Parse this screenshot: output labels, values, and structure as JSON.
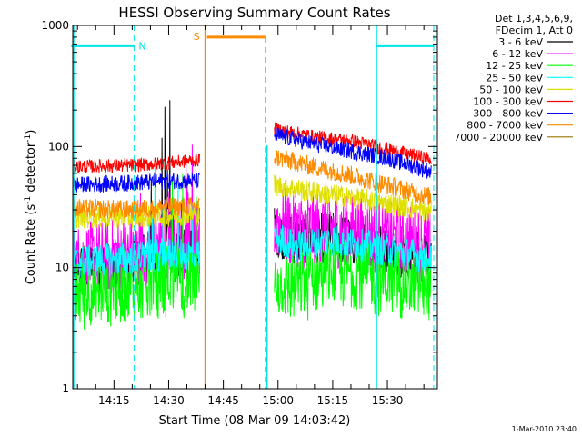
{
  "chart_data": {
    "type": "line",
    "title": "HESSI Observing Summary Count Rates",
    "xlabel": "Start Time (08-Mar-09 14:03:42)",
    "ylabel_main": "Count Rate (s",
    "ylabel_sup1": "-1",
    "ylabel_mid": " detector",
    "ylabel_sup2": "-1",
    "ylabel_end": ")",
    "ylog": true,
    "ylim": [
      1,
      1000
    ],
    "xlim_min": [
      3.7,
      103.7
    ],
    "y_ticks": [
      {
        "value": 1,
        "label": "1"
      },
      {
        "value": 10,
        "label": "10"
      },
      {
        "value": 100,
        "label": "100"
      },
      {
        "value": 1000,
        "label": "1000"
      }
    ],
    "x_ticks": [
      {
        "value": 15,
        "label": "14:15"
      },
      {
        "value": 30,
        "label": "14:30"
      },
      {
        "value": 45,
        "label": "14:45"
      },
      {
        "value": 60,
        "label": "15:00"
      },
      {
        "value": 75,
        "label": "15:15"
      },
      {
        "value": 90,
        "label": "15:30"
      }
    ],
    "legend_header": [
      "Det 1,3,4,5,6,9,",
      "FDecim 1, Att 0"
    ],
    "legend_position": "right",
    "series": [
      {
        "name": "3 - 6 keV",
        "color": "#000000",
        "seg1": [
          [
            4,
            10
          ],
          [
            20,
            11
          ],
          [
            30,
            14
          ],
          [
            36,
            13
          ],
          [
            38.5,
            14
          ]
        ],
        "seg2": [
          [
            59,
            20
          ],
          [
            65,
            17
          ],
          [
            75,
            18
          ],
          [
            90,
            14
          ],
          [
            102,
            12
          ]
        ]
      },
      {
        "name": "6 - 12 keV",
        "color": "#ff00ff",
        "seg1": [
          [
            4,
            11
          ],
          [
            20,
            13
          ],
          [
            30,
            16
          ],
          [
            38.5,
            16
          ]
        ],
        "seg2": [
          [
            59,
            24
          ],
          [
            65,
            20
          ],
          [
            75,
            21
          ],
          [
            90,
            17
          ],
          [
            102,
            15
          ]
        ]
      },
      {
        "name": "12 - 25 keV",
        "color": "#00ff00",
        "seg1": [
          [
            4,
            7
          ],
          [
            20,
            8
          ],
          [
            30,
            9
          ],
          [
            38.5,
            9
          ]
        ],
        "seg2": [
          [
            59,
            9
          ],
          [
            65,
            8
          ],
          [
            75,
            11
          ],
          [
            90,
            9
          ],
          [
            102,
            8
          ]
        ]
      },
      {
        "name": "25 - 50 keV",
        "color": "#00ffff",
        "seg1": [
          [
            4,
            11
          ],
          [
            20,
            12
          ],
          [
            30,
            13
          ],
          [
            38.5,
            13
          ]
        ],
        "seg2": [
          [
            59,
            18
          ],
          [
            65,
            15
          ],
          [
            75,
            17
          ],
          [
            90,
            14
          ],
          [
            102,
            12
          ]
        ]
      },
      {
        "name": "50 - 100 keV",
        "color": "#e0e000",
        "seg1": [
          [
            4,
            26
          ],
          [
            20,
            26
          ],
          [
            30,
            27
          ],
          [
            38.5,
            28
          ]
        ],
        "seg2": [
          [
            59,
            48
          ],
          [
            70,
            42
          ],
          [
            80,
            38
          ],
          [
            95,
            32
          ],
          [
            102,
            28
          ]
        ]
      },
      {
        "name": "100 - 300 keV",
        "color": "#ff0000",
        "seg1": [
          [
            4,
            68
          ],
          [
            20,
            70
          ],
          [
            30,
            73
          ],
          [
            38.5,
            78
          ]
        ],
        "seg2": [
          [
            59,
            140
          ],
          [
            70,
            120
          ],
          [
            80,
            112
          ],
          [
            90,
            95
          ],
          [
            102,
            78
          ]
        ]
      },
      {
        "name": "300 - 800 keV",
        "color": "#0000ff",
        "seg1": [
          [
            4,
            48
          ],
          [
            20,
            50
          ],
          [
            30,
            52
          ],
          [
            38.5,
            52
          ]
        ],
        "seg2": [
          [
            59,
            125
          ],
          [
            70,
            105
          ],
          [
            80,
            92
          ],
          [
            90,
            80
          ],
          [
            102,
            62
          ]
        ]
      },
      {
        "name": "800 - 7000 keV",
        "color": "#ff8c00",
        "seg1": [
          [
            4,
            31
          ],
          [
            20,
            30
          ],
          [
            30,
            32
          ],
          [
            38.5,
            32
          ]
        ],
        "seg2": [
          [
            59,
            82
          ],
          [
            70,
            68
          ],
          [
            80,
            58
          ],
          [
            90,
            48
          ],
          [
            102,
            38
          ]
        ]
      },
      {
        "name": "7000 - 20000 keV",
        "color": "#9a7400",
        "seg1": [],
        "seg2": []
      }
    ],
    "annotations": [
      {
        "label": "N",
        "color": "#00e5e5"
      },
      {
        "label": "S",
        "color": "#ff8c00"
      }
    ],
    "saa_start_min": 40,
    "saa_end_min": 56.5,
    "night_1": [
      4,
      20.5
    ],
    "night_2": [
      87,
      102.7
    ],
    "timestamp": "1-Mar-2010 23:40"
  }
}
